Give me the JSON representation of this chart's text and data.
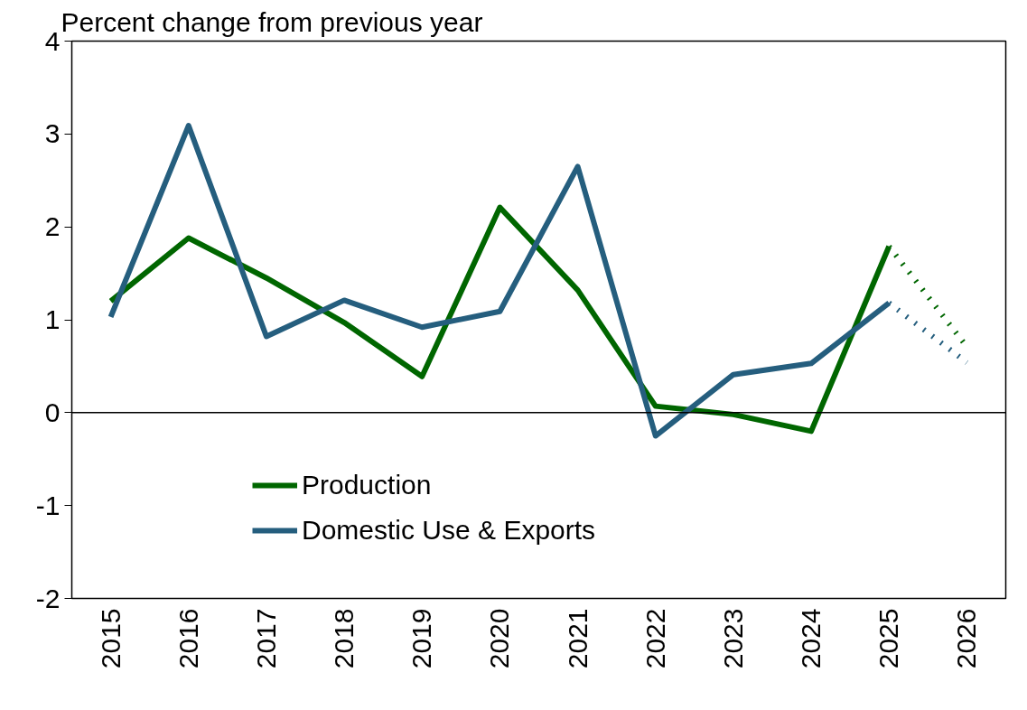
{
  "chart_data": {
    "type": "line",
    "ylabel": "Percent change from previous year",
    "categories": [
      "2015",
      "2016",
      "2017",
      "2018",
      "2019",
      "2020",
      "2021",
      "2022",
      "2023",
      "2024",
      "2025",
      "2026"
    ],
    "series": [
      {
        "name": "Production",
        "color": "#006600",
        "values": [
          1.2,
          1.88,
          1.45,
          0.97,
          0.39,
          2.21,
          1.32,
          0.07,
          -0.02,
          -0.2,
          1.79,
          null
        ]
      },
      {
        "name": "Domestic Use & Exports",
        "color": "#255e7e",
        "values": [
          1.03,
          3.09,
          0.82,
          1.21,
          0.92,
          1.09,
          2.65,
          -0.25,
          0.41,
          0.53,
          1.18,
          null
        ]
      },
      {
        "color": "#006600",
        "line_style": "dotted",
        "values": [
          null,
          null,
          null,
          null,
          null,
          null,
          null,
          null,
          null,
          null,
          1.79,
          0.71
        ]
      },
      {
        "color": "#255e7e",
        "line_style": "dotted",
        "values": [
          null,
          null,
          null,
          null,
          null,
          null,
          null,
          null,
          null,
          null,
          1.18,
          0.54
        ]
      }
    ],
    "ylim": [
      -2,
      4
    ],
    "yticks": [
      -2,
      -1,
      0,
      1,
      2,
      3,
      4
    ],
    "ref_lines": [
      {
        "axis": "y",
        "value": 0,
        "color": "#000000"
      }
    ],
    "legend": "bottom",
    "grid": false
  }
}
